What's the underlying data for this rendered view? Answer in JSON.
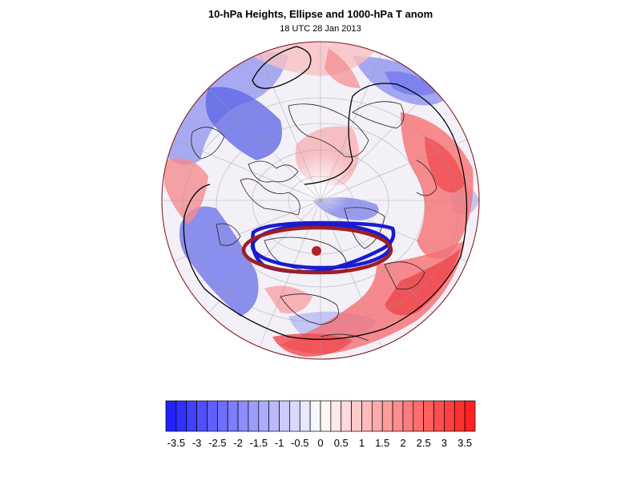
{
  "map": {
    "title": "10-hPa Heights, Ellipse and 1000-hPa T anom",
    "subtitle": "18 UTC 28 Jan 2013",
    "projection": "orthographic-polar",
    "colors": {
      "ellipse_blue": "#1a1ad0",
      "ellipse_red": "#9e1e22",
      "center_marker": "#b22222",
      "contour": "#000000",
      "coast": "#000000",
      "globe_edge": "#8b1a1a"
    }
  },
  "colorbar": {
    "min": -3.75,
    "max": 3.75,
    "step": 0.25,
    "tick_labels": [
      "-3.5",
      "-3",
      "-2.5",
      "-2",
      "-1.5",
      "-1",
      "-0.5",
      "0",
      "0.5",
      "1",
      "1.5",
      "2",
      "2.5",
      "3",
      "3.5"
    ],
    "tick_values": [
      -3.5,
      -3,
      -2.5,
      -2,
      -1.5,
      -1,
      -0.5,
      0,
      0.5,
      1,
      1.5,
      2,
      2.5,
      3,
      3.5
    ],
    "negative_color": "#1a1aff",
    "positive_color": "#ff1a1a",
    "neutral_color": "#ffffff"
  }
}
